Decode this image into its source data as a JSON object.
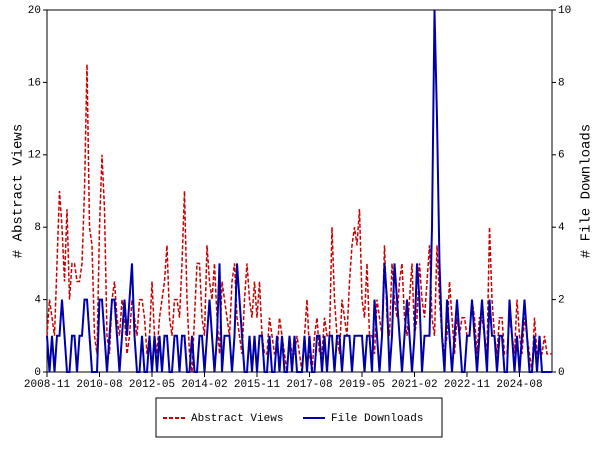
{
  "chart_data": {
    "type": "line",
    "y_label": "# Abstract Views",
    "y2_label": "# File Downloads",
    "x": [
      "2008-11",
      "2008-12",
      "2009-01",
      "2009-02",
      "2009-03",
      "2009-04",
      "2009-05",
      "2009-06",
      "2009-07",
      "2009-08",
      "2009-09",
      "2009-10",
      "2009-11",
      "2009-12",
      "2010-01",
      "2010-02",
      "2010-03",
      "2010-04",
      "2010-05",
      "2010-06",
      "2010-07",
      "2010-08",
      "2010-09",
      "2010-10",
      "2010-11",
      "2010-12",
      "2011-01",
      "2011-02",
      "2011-03",
      "2011-04",
      "2011-05",
      "2011-06",
      "2011-07",
      "2011-08",
      "2011-09",
      "2011-10",
      "2011-11",
      "2011-12",
      "2012-01",
      "2012-02",
      "2012-03",
      "2012-04",
      "2012-05",
      "2012-06",
      "2012-07",
      "2012-08",
      "2012-09",
      "2012-10",
      "2012-11",
      "2012-12",
      "2013-01",
      "2013-02",
      "2013-03",
      "2013-04",
      "2013-05",
      "2013-06",
      "2013-07",
      "2013-08",
      "2013-09",
      "2013-10",
      "2013-11",
      "2013-12",
      "2014-01",
      "2014-02",
      "2014-03",
      "2014-04",
      "2014-05",
      "2014-06",
      "2014-07",
      "2014-08",
      "2014-09",
      "2014-10",
      "2014-11",
      "2014-12",
      "2015-01",
      "2015-02",
      "2015-03",
      "2015-04",
      "2015-05",
      "2015-06",
      "2015-07",
      "2015-08",
      "2015-09",
      "2015-10",
      "2015-11",
      "2015-12",
      "2016-01",
      "2016-02",
      "2016-03",
      "2016-04",
      "2016-05",
      "2016-06",
      "2016-07",
      "2016-08",
      "2016-09",
      "2016-10",
      "2016-11",
      "2016-12",
      "2017-01",
      "2017-02",
      "2017-03",
      "2017-04",
      "2017-05",
      "2017-06",
      "2017-07",
      "2017-08",
      "2017-09",
      "2017-10",
      "2017-11",
      "2017-12",
      "2018-01",
      "2018-02",
      "2018-03",
      "2018-04",
      "2018-05",
      "2018-06",
      "2018-07",
      "2018-08",
      "2018-09",
      "2018-10",
      "2018-11",
      "2018-12",
      "2019-01",
      "2019-02",
      "2019-03",
      "2019-04",
      "2019-05",
      "2019-06",
      "2019-07",
      "2019-08",
      "2019-09",
      "2019-10",
      "2019-11",
      "2019-12",
      "2020-01",
      "2020-02",
      "2020-03",
      "2020-04",
      "2020-05",
      "2020-06",
      "2020-07",
      "2020-08",
      "2020-09",
      "2020-10",
      "2020-11",
      "2020-12",
      "2021-01",
      "2021-02",
      "2021-03",
      "2021-04",
      "2021-05",
      "2021-06",
      "2021-07",
      "2021-08",
      "2021-09",
      "2021-10",
      "2021-11",
      "2021-12",
      "2022-01",
      "2022-02",
      "2022-03",
      "2022-04",
      "2022-05",
      "2022-06",
      "2022-07",
      "2022-08",
      "2022-09",
      "2022-10",
      "2022-11",
      "2022-12",
      "2023-01",
      "2023-02",
      "2023-03",
      "2023-04",
      "2023-05",
      "2023-06",
      "2023-07",
      "2023-08",
      "2023-09",
      "2023-10",
      "2023-11",
      "2023-12",
      "2024-01",
      "2024-02",
      "2024-03",
      "2024-04",
      "2024-05",
      "2024-06",
      "2024-07",
      "2024-08",
      "2024-09",
      "2024-10",
      "2024-11",
      "2024-12",
      "2025-01",
      "2025-02",
      "2025-03",
      "2025-04",
      "2025-05",
      "2025-06",
      "2025-07",
      "2025-08",
      "2025-09"
    ],
    "xticks": [
      "2008-11",
      "2010-08",
      "2012-05",
      "2014-02",
      "2015-11",
      "2017-08",
      "2019-05",
      "2021-02",
      "2022-11",
      "2024-08"
    ],
    "series": [
      {
        "name": "Abstract Views",
        "color": "#cc0000",
        "dash": true,
        "values": [
          2,
          4,
          3,
          2,
          6,
          10,
          8,
          5,
          9,
          4,
          6,
          6,
          5,
          5,
          6,
          10,
          17,
          8,
          7,
          2,
          1,
          8,
          12,
          9,
          2,
          1,
          4,
          5,
          3,
          2,
          4,
          3,
          1,
          2,
          4,
          3,
          2,
          4,
          4,
          3,
          1,
          2,
          5,
          2,
          1,
          3,
          4,
          5,
          7,
          3,
          2,
          4,
          4,
          3,
          6,
          10,
          4,
          1,
          0,
          3,
          6,
          6,
          3,
          2,
          7,
          5,
          4,
          6,
          3,
          1,
          5,
          4,
          3,
          2,
          5,
          6,
          3,
          2,
          1,
          4,
          6,
          4,
          3,
          5,
          3,
          5,
          2,
          1,
          1,
          3,
          2,
          1,
          1,
          3,
          2,
          1,
          0,
          2,
          1,
          1,
          2,
          1,
          0,
          2,
          4,
          1,
          0,
          2,
          3,
          1,
          1,
          3,
          2,
          2,
          8,
          4,
          2,
          1,
          4,
          3,
          2,
          5,
          7,
          8,
          7,
          9,
          4,
          3,
          6,
          2,
          2,
          1,
          4,
          3,
          2,
          7,
          3,
          2,
          6,
          4,
          3,
          5,
          6,
          3,
          2,
          4,
          6,
          2,
          3,
          6,
          4,
          3,
          5,
          7,
          3,
          2,
          7,
          4,
          2,
          1,
          2,
          5,
          3,
          1,
          3,
          2,
          3,
          3,
          2,
          2,
          4,
          3,
          1,
          3,
          3,
          2,
          1,
          8,
          4,
          2,
          1,
          3,
          3,
          1,
          1,
          3,
          2,
          1,
          4,
          2,
          1,
          3,
          2,
          1,
          0,
          3,
          1,
          1,
          1,
          2,
          1,
          1,
          1
        ]
      },
      {
        "name": "File Downloads",
        "color": "#0000aa",
        "axis": "y2",
        "values": [
          1,
          0,
          1,
          0,
          1,
          1,
          2,
          1,
          0,
          0,
          1,
          1,
          0,
          1,
          1,
          2,
          2,
          1,
          0,
          0,
          0,
          2,
          2,
          1,
          0,
          1,
          2,
          2,
          1,
          0,
          1,
          2,
          1,
          2,
          3,
          1,
          0,
          0,
          1,
          0,
          0,
          1,
          0,
          1,
          0,
          1,
          0,
          1,
          1,
          0,
          0,
          1,
          1,
          0,
          1,
          1,
          0,
          0,
          1,
          0,
          0,
          1,
          1,
          0,
          1,
          2,
          1,
          0,
          1,
          3,
          0,
          1,
          1,
          1,
          0,
          1,
          3,
          2,
          1,
          0,
          0,
          1,
          0,
          1,
          0,
          1,
          1,
          0,
          0,
          1,
          0,
          0,
          1,
          0,
          1,
          0,
          0,
          1,
          0,
          1,
          0,
          0,
          0,
          1,
          0,
          1,
          0,
          0,
          1,
          1,
          0,
          1,
          0,
          1,
          1,
          0,
          1,
          1,
          0,
          1,
          1,
          1,
          0,
          1,
          1,
          1,
          1,
          0,
          1,
          1,
          0,
          2,
          1,
          0,
          1,
          3,
          2,
          0,
          1,
          3,
          2,
          1,
          0,
          1,
          2,
          1,
          0,
          1,
          3,
          2,
          0,
          1,
          1,
          1,
          4,
          10,
          7,
          3,
          1,
          0,
          2,
          1,
          0,
          1,
          2,
          1,
          0,
          0,
          1,
          1,
          2,
          1,
          0,
          1,
          2,
          1,
          0,
          2,
          1,
          1,
          0,
          1,
          1,
          0,
          0,
          2,
          1,
          0,
          1,
          0,
          1,
          2,
          1,
          0,
          0,
          1,
          0,
          1,
          0,
          0,
          0,
          0,
          0
        ]
      }
    ],
    "ylim": [
      0,
      20
    ],
    "yticks": [
      0,
      4,
      8,
      12,
      16,
      20
    ],
    "y2lim": [
      0,
      10
    ],
    "y2ticks": [
      0,
      2,
      4,
      6,
      8,
      10
    ],
    "legend": "bottom"
  }
}
